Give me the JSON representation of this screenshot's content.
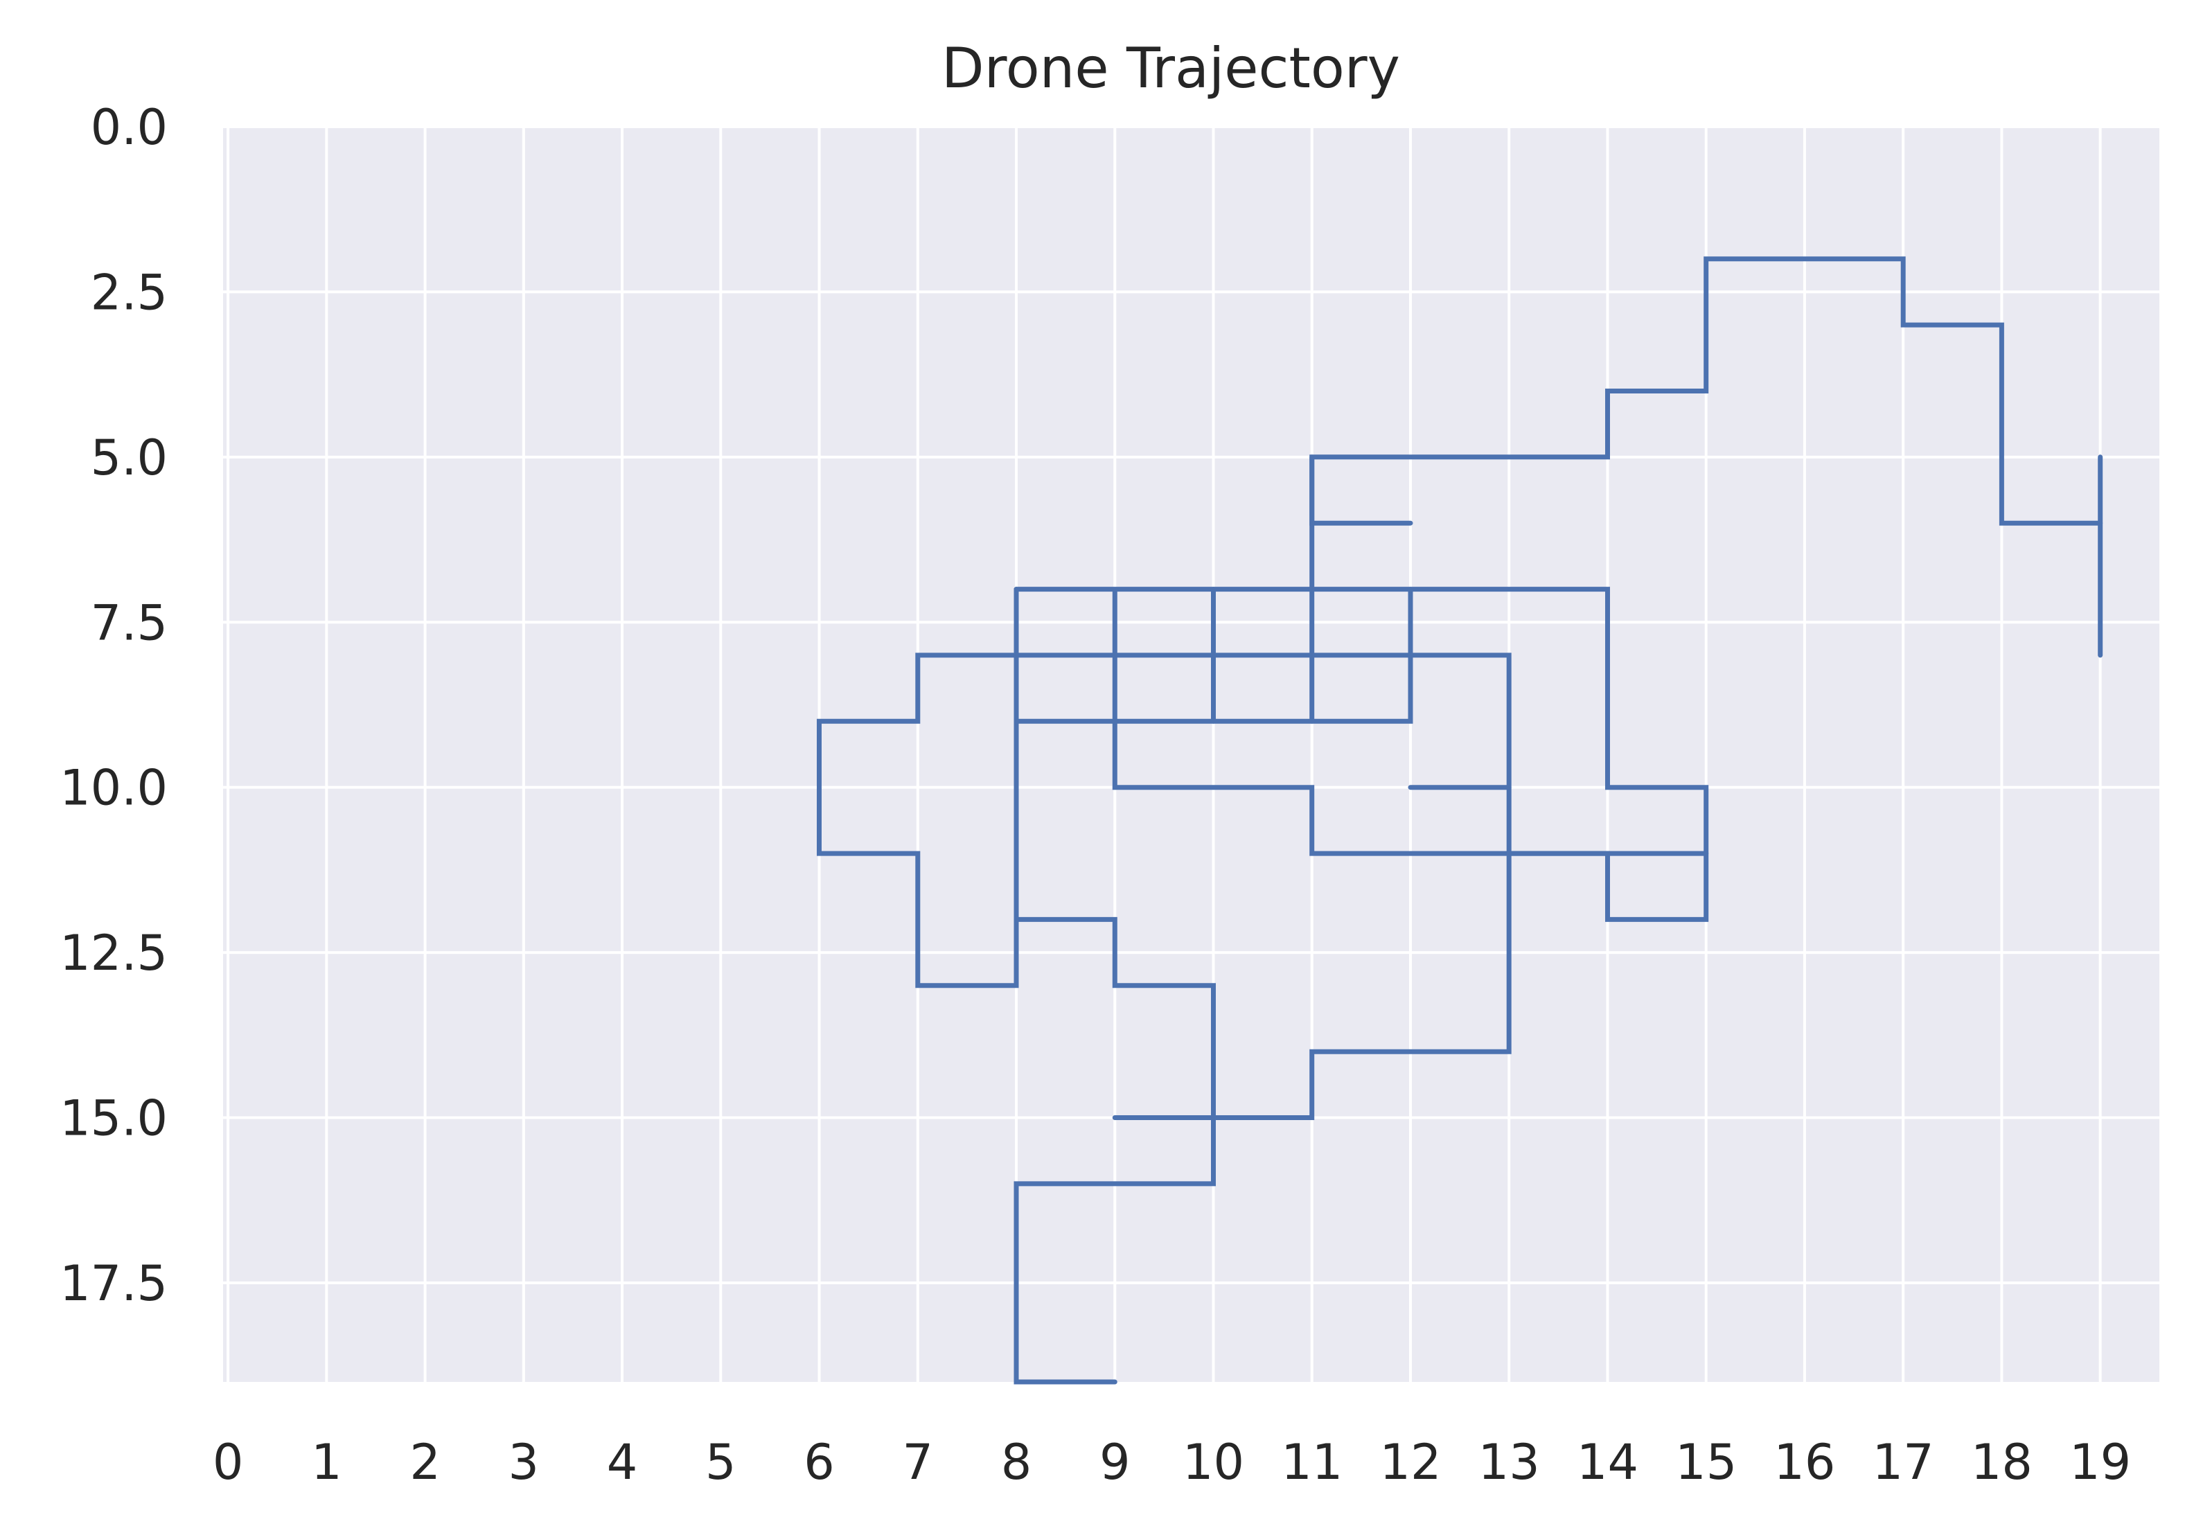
{
  "chart_data": {
    "type": "line",
    "title": "Drone Trajectory",
    "xlabel": "",
    "ylabel": "",
    "xlim": [
      -0.05,
      19.6
    ],
    "ylim": [
      19,
      0
    ],
    "y_inverted": true,
    "grid": true,
    "x_ticks": [
      "0",
      "1",
      "2",
      "3",
      "4",
      "5",
      "6",
      "7",
      "8",
      "9",
      "10",
      "11",
      "12",
      "13",
      "14",
      "15",
      "16",
      "17",
      "18",
      "19"
    ],
    "y_ticks": [
      "0.0",
      "2.5",
      "5.0",
      "7.5",
      "10.0",
      "12.5",
      "15.0",
      "17.5"
    ],
    "colors": {
      "line": "#4C72B0",
      "background": "#EAEAF2",
      "grid": "#FFFFFF",
      "text": "#262626"
    },
    "segments": [
      [
        [
          19,
          8
        ],
        [
          19,
          5
        ]
      ],
      [
        [
          19,
          6
        ],
        [
          18,
          6
        ],
        [
          18,
          3
        ],
        [
          17,
          3
        ],
        [
          17,
          2
        ],
        [
          15,
          2
        ],
        [
          15,
          4
        ],
        [
          14,
          4
        ],
        [
          14,
          5
        ],
        [
          11,
          5
        ],
        [
          11,
          6
        ],
        [
          12,
          6
        ]
      ],
      [
        [
          11,
          5
        ],
        [
          11,
          9
        ]
      ],
      [
        [
          8,
          7
        ],
        [
          14,
          7
        ],
        [
          14,
          10
        ],
        [
          15,
          10
        ],
        [
          15,
          12
        ],
        [
          14,
          12
        ],
        [
          14,
          11
        ],
        [
          11,
          11
        ],
        [
          11,
          10
        ],
        [
          9,
          10
        ],
        [
          9,
          7
        ]
      ],
      [
        [
          10,
          7
        ],
        [
          10,
          9
        ]
      ],
      [
        [
          12,
          7
        ],
        [
          12,
          9
        ],
        [
          8,
          9
        ]
      ],
      [
        [
          8,
          7
        ],
        [
          8,
          13
        ],
        [
          7,
          13
        ],
        [
          7,
          11
        ],
        [
          6,
          11
        ],
        [
          6,
          9
        ],
        [
          7,
          9
        ],
        [
          7,
          8
        ],
        [
          13,
          8
        ],
        [
          13,
          14
        ],
        [
          11,
          14
        ],
        [
          11,
          15
        ],
        [
          9,
          15
        ]
      ],
      [
        [
          12,
          10
        ],
        [
          13,
          10
        ]
      ],
      [
        [
          13,
          11
        ],
        [
          15,
          11
        ]
      ],
      [
        [
          8,
          12
        ],
        [
          9,
          12
        ],
        [
          9,
          13
        ],
        [
          10,
          13
        ],
        [
          10,
          16
        ],
        [
          8,
          16
        ],
        [
          8,
          19
        ],
        [
          9,
          19
        ]
      ]
    ]
  }
}
